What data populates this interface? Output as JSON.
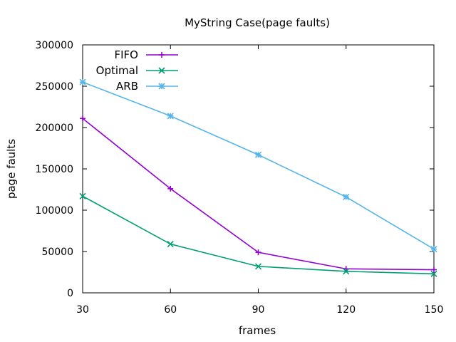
{
  "chart_data": {
    "type": "line",
    "title": "MyString Case(page faults)",
    "xlabel": "frames",
    "ylabel": "page faults",
    "x": [
      30,
      60,
      90,
      120,
      150
    ],
    "xlim": [
      30,
      150
    ],
    "ylim": [
      0,
      300000
    ],
    "x_ticks": [
      30,
      60,
      90,
      120,
      150
    ],
    "y_ticks": [
      0,
      50000,
      100000,
      150000,
      200000,
      250000,
      300000
    ],
    "grid": false,
    "legend_position": "top-left",
    "series": [
      {
        "name": "FIFO",
        "color": "#9400d3",
        "marker": "plus",
        "values": [
          211000,
          126000,
          49000,
          29000,
          28000
        ]
      },
      {
        "name": "Optimal",
        "color": "#009e73",
        "marker": "cross",
        "values": [
          117000,
          59000,
          32000,
          26000,
          23000
        ]
      },
      {
        "name": "ARB",
        "color": "#56b4e9",
        "marker": "star",
        "values": [
          255000,
          214000,
          167000,
          116000,
          53000
        ]
      }
    ]
  }
}
